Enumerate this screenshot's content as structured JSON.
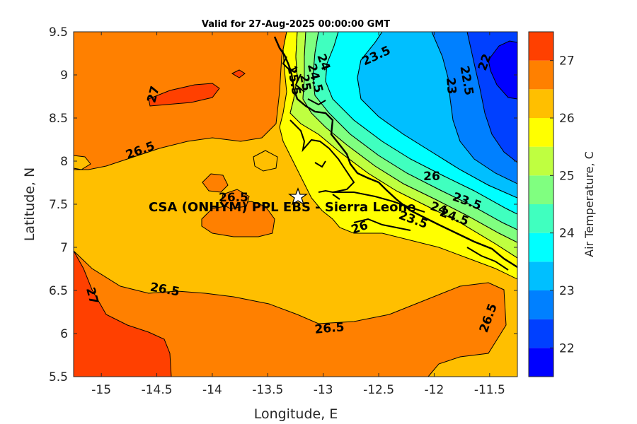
{
  "title": "Valid for 27-Aug-2025 00:00:00 GMT",
  "site_label": "CSA (ONHYM) PPL EBS  - Sierra Leone",
  "xlabel": "Longitude, E",
  "ylabel": "Latitude, N",
  "colorbar_label": "Air Temperature, C",
  "chart_data": {
    "type": "heatmap",
    "x_ticks": [
      "-15",
      "-14.5",
      "-14",
      "-13.5",
      "-13",
      "-12.5",
      "-12",
      "-11.5"
    ],
    "y_ticks": [
      "9.5",
      "9",
      "8.5",
      "8",
      "7.5",
      "7",
      "6.5",
      "6",
      "5.5"
    ],
    "xlim": [
      -15.25,
      -11.25
    ],
    "ylim": [
      5.5,
      9.5
    ],
    "colorbar_ticks": [
      "22",
      "23",
      "24",
      "25",
      "26",
      "27"
    ],
    "colorbar_range": [
      21.5,
      27.5
    ],
    "levels": [
      21.5,
      22,
      22.5,
      23,
      23.5,
      24,
      24.5,
      25,
      25.5,
      26,
      26.5,
      27,
      27.5
    ],
    "level_colors": [
      "#0000ff",
      "#0040ff",
      "#0080ff",
      "#00bfff",
      "#00ffff",
      "#40ffbf",
      "#80ff80",
      "#bfff40",
      "#ffff00",
      "#ffbf00",
      "#ff8000",
      "#ff4000"
    ],
    "contour_labels": [
      "27",
      "26.5",
      "26.5",
      "26.5",
      "27",
      "26.5",
      "26.5",
      "26",
      "26",
      "23.5",
      "23",
      "22.5",
      "22",
      "24",
      "24.5",
      "25",
      "25.5",
      "23.5",
      "24",
      "24.5",
      "23.5"
    ],
    "site_marker": {
      "lon": -13.25,
      "lat": 7.6,
      "symbol": "star"
    }
  }
}
